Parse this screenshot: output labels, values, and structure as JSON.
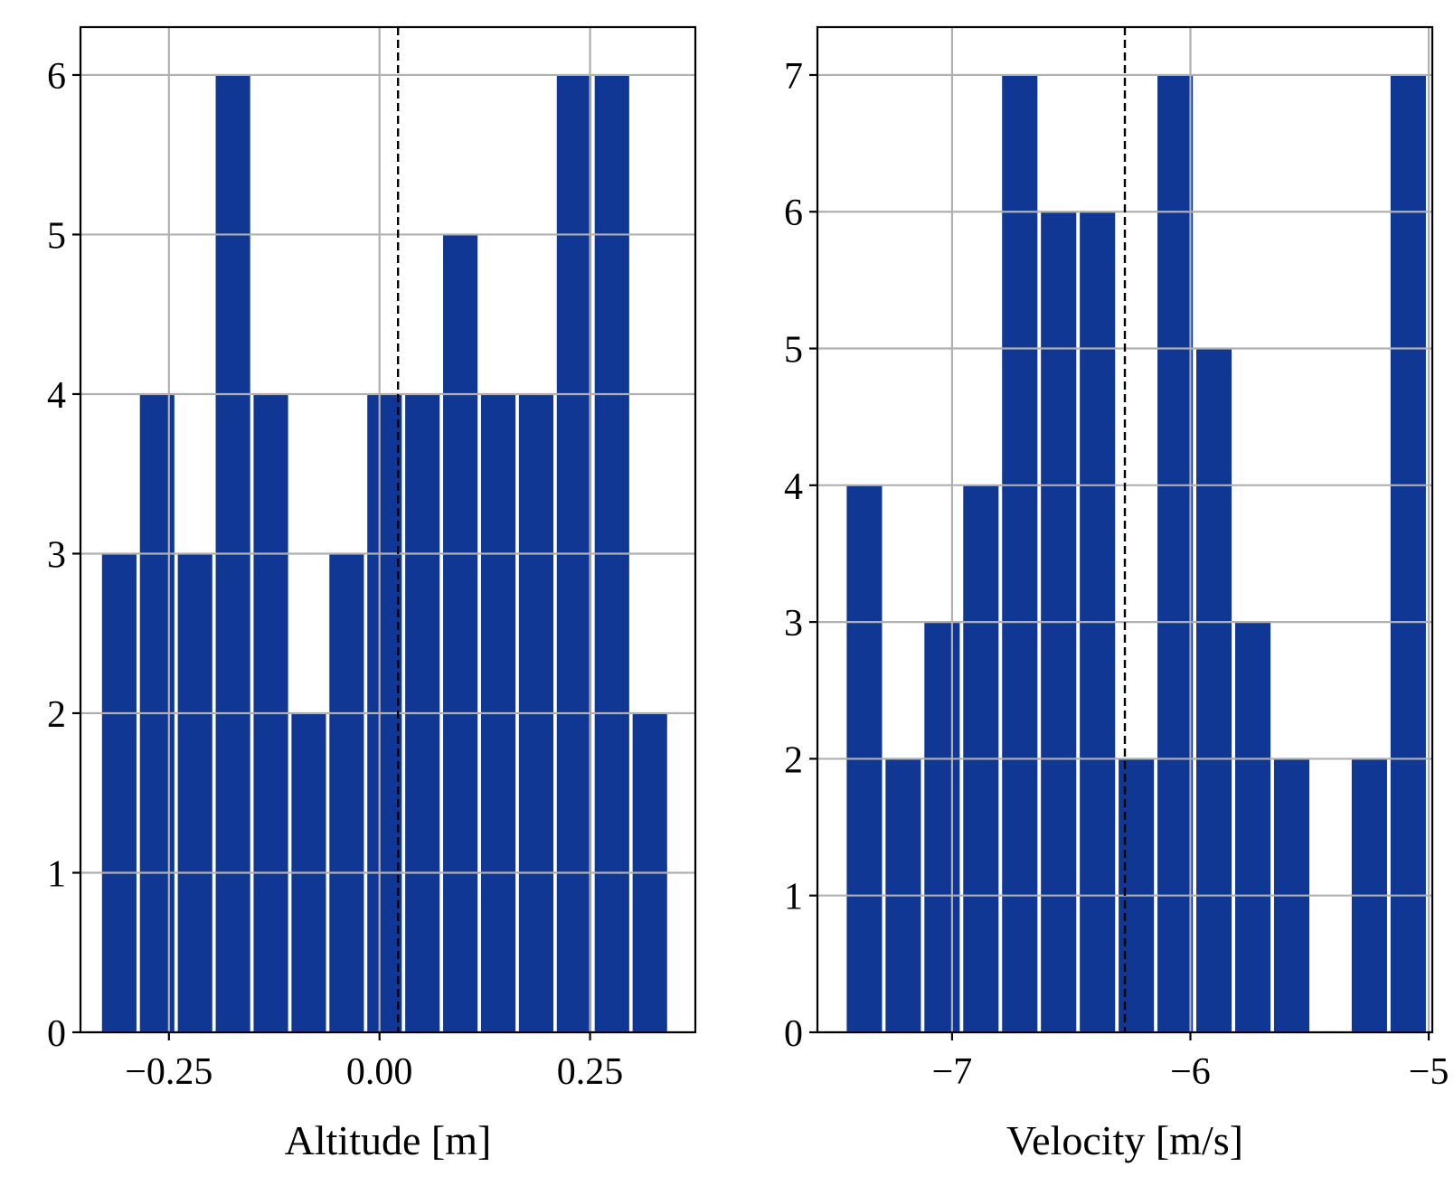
{
  "colors": {
    "bar": "#0f3793",
    "grid": "#b0b0b0",
    "axes": "#000000",
    "mean_line": "#000000"
  },
  "chart_data": [
    {
      "type": "bar",
      "title": "",
      "xlabel": "Altitude [m]",
      "ylabel": "",
      "grid": true,
      "xlim": [
        -0.355,
        0.375
      ],
      "ylim": [
        0,
        6.3
      ],
      "xticks": [
        -0.25,
        0.0,
        0.25
      ],
      "xtick_labels": [
        "−0.25",
        "0.00",
        "0.25"
      ],
      "yticks": [
        0,
        1,
        2,
        3,
        4,
        5,
        6
      ],
      "ytick_labels": [
        "0",
        "1",
        "2",
        "3",
        "4",
        "5",
        "6"
      ],
      "bin_width": 0.045,
      "bin_centers": [
        -0.309,
        -0.264,
        -0.219,
        -0.174,
        -0.129,
        -0.084,
        -0.039,
        0.006,
        0.051,
        0.096,
        0.141,
        0.186,
        0.231,
        0.276,
        0.321
      ],
      "values": [
        3,
        4,
        3,
        6,
        4,
        2,
        3,
        4,
        4,
        5,
        4,
        4,
        6,
        6,
        2
      ],
      "vline": 0.022
    },
    {
      "type": "bar",
      "title": "",
      "xlabel": "Velocity [m/s]",
      "ylabel": "",
      "grid": true,
      "xlim": [
        -7.565,
        -4.985
      ],
      "ylim": [
        0,
        7.35
      ],
      "xticks": [
        -7,
        -6,
        -5
      ],
      "xtick_labels": [
        "−7",
        "−6",
        "−5"
      ],
      "yticks": [
        0,
        1,
        2,
        3,
        4,
        5,
        6,
        7
      ],
      "ytick_labels": [
        "0",
        "1",
        "2",
        "3",
        "4",
        "5",
        "6",
        "7"
      ],
      "bin_width": 0.163,
      "bin_centers": [
        -7.368,
        -7.205,
        -7.042,
        -6.879,
        -6.716,
        -6.553,
        -6.39,
        -6.227,
        -6.064,
        -5.901,
        -5.738,
        -5.575,
        -5.412,
        -5.249,
        -5.086
      ],
      "values": [
        4,
        2,
        3,
        4,
        7,
        6,
        6,
        2,
        7,
        5,
        3,
        2,
        0,
        2,
        7
      ],
      "vline": -6.275
    }
  ]
}
